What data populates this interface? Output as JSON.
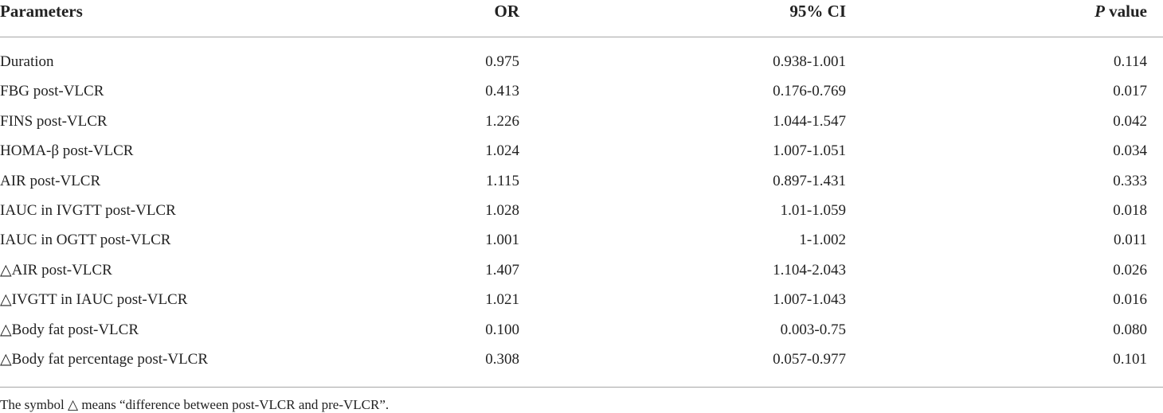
{
  "table": {
    "header": [
      "Parameters",
      "OR",
      "95% CI",
      {
        "italic": "P",
        "rest": " value"
      }
    ],
    "rows": [
      [
        "Duration",
        "0.975",
        "0.938-1.001",
        "0.114"
      ],
      [
        "FBG post-VLCR",
        "0.413",
        "0.176-0.769",
        "0.017"
      ],
      [
        "FINS post-VLCR",
        "1.226",
        "1.044-1.547",
        "0.042"
      ],
      [
        "HOMA-β post-VLCR",
        "1.024",
        "1.007-1.051",
        "0.034"
      ],
      [
        "AIR post-VLCR",
        "1.115",
        "0.897-1.431",
        "0.333"
      ],
      [
        "IAUC in IVGTT post-VLCR",
        "1.028",
        "1.01-1.059",
        "0.018"
      ],
      [
        "IAUC in OGTT post-VLCR",
        "1.001",
        "1-1.002",
        "0.011"
      ],
      [
        "△AIR post-VLCR",
        "1.407",
        "1.104-2.043",
        "0.026"
      ],
      [
        "△IVGTT in IAUC post-VLCR",
        "1.021",
        "1.007-1.043",
        "0.016"
      ],
      [
        "△Body fat post-VLCR",
        "0.100",
        "0.003-0.75",
        "0.080"
      ],
      [
        "△Body fat percentage post-VLCR",
        "0.308",
        "0.057-0.977",
        "0.101"
      ]
    ],
    "footnote": "The symbol △ means “difference between post-VLCR and pre-VLCR”."
  }
}
